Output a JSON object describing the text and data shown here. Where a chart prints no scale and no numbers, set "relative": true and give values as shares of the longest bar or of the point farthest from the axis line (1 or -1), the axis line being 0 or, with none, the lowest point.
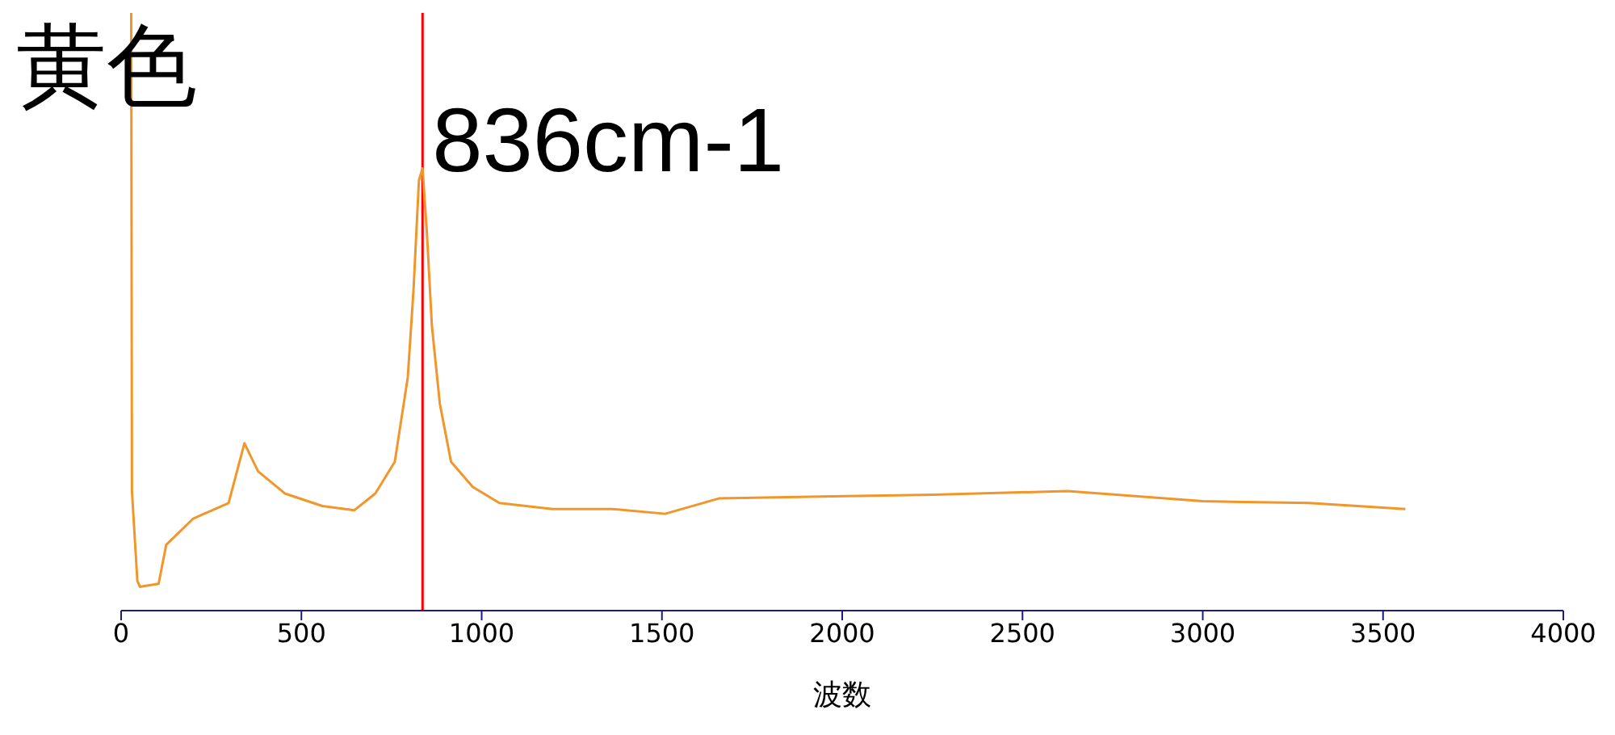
{
  "chart_data": {
    "type": "line",
    "title": "黄色",
    "xlabel": "波数",
    "relative": true,
    "x": [
      25,
      28,
      30,
      45,
      52,
      104,
      125,
      200,
      298,
      342,
      380,
      454,
      558,
      647,
      705,
      759,
      795,
      811,
      826,
      836,
      848,
      862,
      884,
      915,
      975,
      1049,
      1196,
      1362,
      1509,
      1660,
      2254,
      2625,
      3000,
      3295,
      3562
    ],
    "series": [
      {
        "color": "#f0962a",
        "values": [
          1.0,
          1.0,
          0.2,
          0.05,
          0.04,
          0.045,
          0.11,
          0.154,
          0.18,
          0.28,
          0.233,
          0.196,
          0.175,
          0.168,
          0.196,
          0.249,
          0.39,
          0.537,
          0.72,
          0.74,
          0.633,
          0.476,
          0.346,
          0.249,
          0.207,
          0.18,
          0.17,
          0.17,
          0.162,
          0.188,
          0.194,
          0.2,
          0.183,
          0.18,
          0.17
        ]
      }
    ],
    "xlim": [
      0,
      4000
    ],
    "xticks": [
      0,
      500,
      1000,
      1500,
      2000,
      2500,
      3000,
      3500,
      4000
    ],
    "ref_lines": [
      {
        "axis": "x",
        "value": 836,
        "label": "836cm-1",
        "color": "#ff0000"
      }
    ],
    "grid": false,
    "legend": false,
    "marker": "none",
    "line_style": "solid"
  }
}
